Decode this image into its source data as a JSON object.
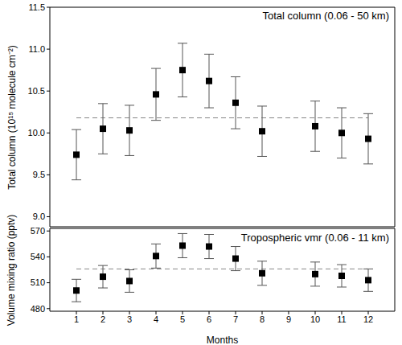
{
  "chart_data": [
    {
      "type": "scatter",
      "title": "Total column (0.06 - 50 km)",
      "ylabel": "Total column (10¹⁵ molecule cm⁻²)",
      "x": [
        1,
        2,
        3,
        4,
        5,
        6,
        7,
        8,
        10,
        11,
        12
      ],
      "values": [
        9.74,
        10.05,
        10.03,
        10.46,
        10.75,
        10.62,
        10.36,
        10.02,
        10.08,
        10.0,
        9.93
      ],
      "errors": [
        0.3,
        0.3,
        0.3,
        0.31,
        0.32,
        0.32,
        0.31,
        0.3,
        0.3,
        0.3,
        0.3
      ],
      "mean": 10.18,
      "xlim": [
        0,
        13
      ],
      "xticks": [
        1,
        2,
        3,
        4,
        5,
        6,
        7,
        8,
        9,
        10,
        11,
        12
      ],
      "ylim": [
        8.88,
        11.5
      ],
      "yticks": [
        {
          "value": 9,
          "label": "9.0"
        },
        9.5,
        {
          "value": 10,
          "label": "10.0"
        },
        10.5,
        {
          "value": 11,
          "label": "11.0"
        },
        11.5
      ],
      "tick_labels": "y",
      "marker": "square",
      "color": "#000000",
      "line_style": "dashed"
    },
    {
      "type": "scatter",
      "title": "Tropospheric vmr (0.06 - 11 km)",
      "ylabel": "Volume mixing ratio (pptv)",
      "xlabel": "Months",
      "x": [
        1,
        2,
        3,
        4,
        5,
        6,
        7,
        8,
        10,
        11,
        12
      ],
      "values": [
        501,
        517,
        512,
        541,
        553,
        552,
        538,
        521,
        520,
        518,
        513
      ],
      "errors": [
        13,
        13,
        13,
        14,
        14,
        14,
        14,
        14,
        14,
        13,
        13
      ],
      "mean": 526,
      "xlim": [
        0,
        13
      ],
      "xticks": [
        1,
        2,
        3,
        4,
        5,
        6,
        7,
        8,
        9,
        10,
        11,
        12
      ],
      "ylim": [
        477,
        573
      ],
      "yticks": [
        480,
        510,
        540,
        570
      ],
      "marker": "square",
      "color": "#000000",
      "line_style": "dashed"
    }
  ]
}
